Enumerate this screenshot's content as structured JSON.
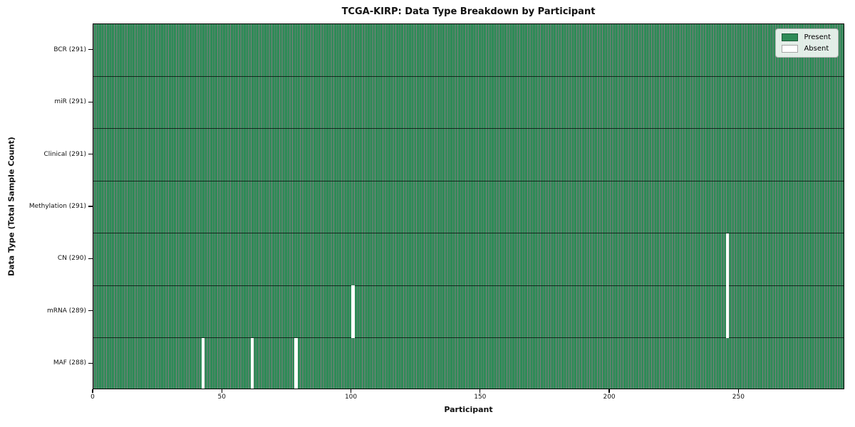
{
  "colors": {
    "present": "#2e8b57",
    "absent": "#ffffff",
    "cell_edge": "rgba(0,0,0,0.50)",
    "row_separator": "rgba(0,0,0,0.70)",
    "axis": "#000000",
    "legend_bg": "rgba(255,255,255,0.85)"
  },
  "chart_data": {
    "type": "heatmap",
    "title": "TCGA-KIRP: Data Type Breakdown by Participant",
    "xlabel": "Participant",
    "ylabel": "Data Type (Total Sample Count)",
    "n_participants": 291,
    "xlim": [
      0,
      291
    ],
    "x_ticks": [
      0,
      50,
      100,
      150,
      200,
      250
    ],
    "grid": false,
    "legend": [
      "Present",
      "Absent"
    ],
    "legend_position": "upper-right",
    "rows": [
      {
        "label": "BCR (291)",
        "data_type": "BCR",
        "total": 291,
        "absent_participants": []
      },
      {
        "label": "miR (291)",
        "data_type": "miR",
        "total": 291,
        "absent_participants": []
      },
      {
        "label": "Clinical (291)",
        "data_type": "Clinical",
        "total": 291,
        "absent_participants": []
      },
      {
        "label": "Methylation (291)",
        "data_type": "Methylation",
        "total": 291,
        "absent_participants": []
      },
      {
        "label": "CN (290)",
        "data_type": "CN",
        "total": 290,
        "absent_participants": [
          245
        ]
      },
      {
        "label": "mRNA (289)",
        "data_type": "mRNA",
        "total": 289,
        "absent_participants": [
          100,
          245
        ]
      },
      {
        "label": "MAF (288)",
        "data_type": "MAF",
        "total": 288,
        "absent_participants": [
          42,
          61,
          78
        ]
      }
    ]
  }
}
